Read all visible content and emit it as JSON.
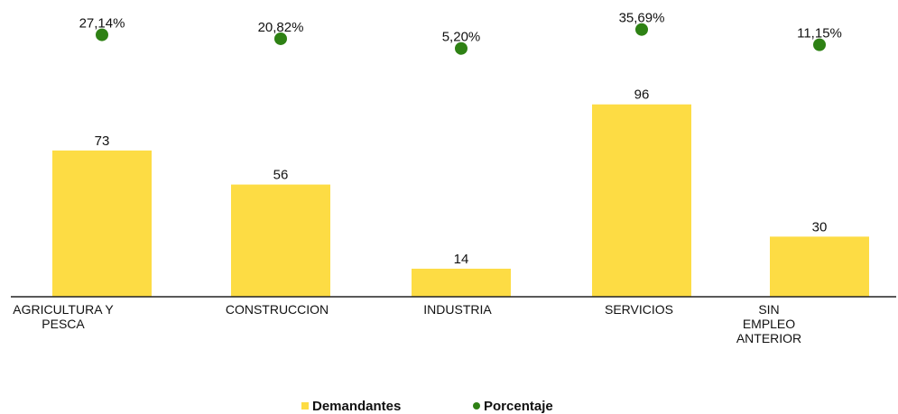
{
  "chart_data": {
    "type": "bar",
    "categories": [
      "AGRICULTURA Y PESCA",
      "CONSTRUCCION",
      "INDUSTRIA",
      "SERVICIOS",
      "SIN EMPLEO ANTERIOR"
    ],
    "series": [
      {
        "name": "Demandantes",
        "type": "bar",
        "color": "#fddc44",
        "values": [
          73,
          56,
          14,
          96,
          30
        ]
      },
      {
        "name": "Porcentaje",
        "type": "scatter",
        "axis": "y2",
        "color": "#2e8114",
        "values": [
          27.14,
          20.82,
          5.2,
          35.69,
          11.15
        ],
        "value_labels": [
          "27,14%",
          "20,82%",
          "5,20%",
          "35,69%",
          "11,15%"
        ]
      }
    ],
    "ylim": [
      0,
      140
    ],
    "y2lim": [
      -394,
      57
    ],
    "legend": "bottom"
  }
}
